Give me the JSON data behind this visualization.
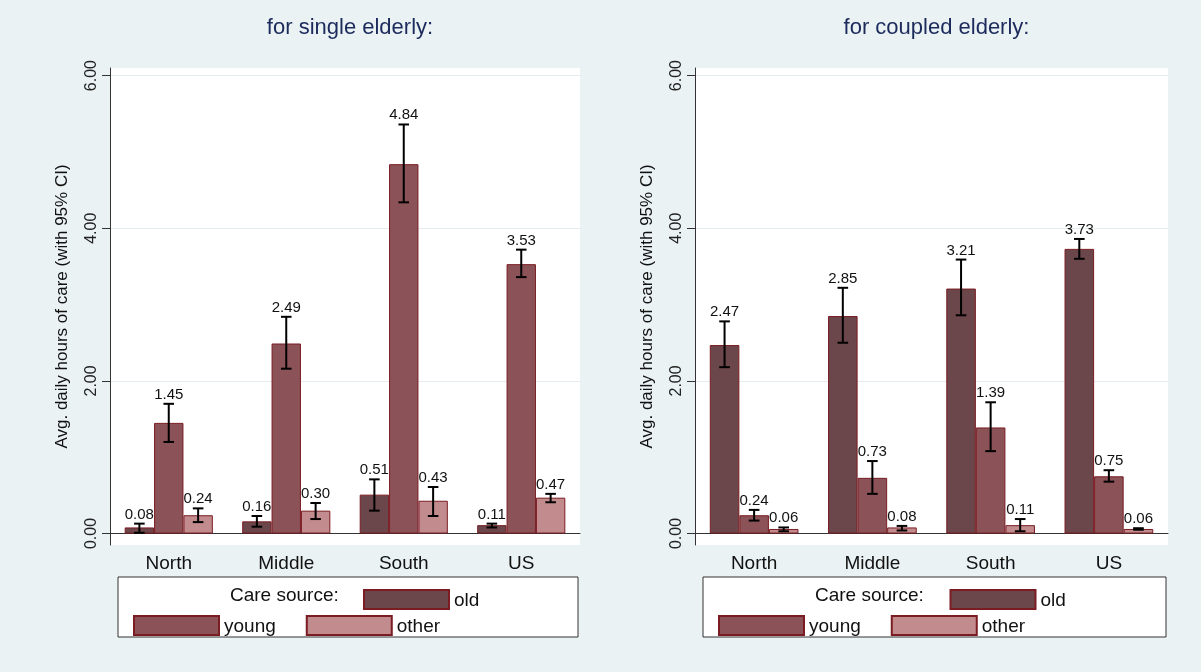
{
  "chart_data": [
    {
      "type": "bar",
      "title": "for single elderly:",
      "ylabel": "Avg. daily hours of care (with 95% CI)",
      "legend_title": "Care source:",
      "categories": [
        "North",
        "Middle",
        "South",
        "US"
      ],
      "series": [
        {
          "name": "old",
          "color": "#6b464a",
          "values": [
            0.08,
            0.16,
            0.51,
            0.11
          ],
          "value_labels": [
            "0.08",
            "0.16",
            "0.51",
            "0.11"
          ],
          "errors": [
            [
              0.01,
              0.13
            ],
            [
              0.09,
              0.23
            ],
            [
              0.3,
              0.71
            ],
            [
              0.08,
              0.13
            ]
          ]
        },
        {
          "name": "young",
          "color": "#8b5257",
          "values": [
            1.45,
            2.49,
            4.84,
            3.53
          ],
          "value_labels": [
            "1.45",
            "2.49",
            "4.84",
            "3.53"
          ],
          "errors": [
            [
              1.2,
              1.7
            ],
            [
              2.16,
              2.84
            ],
            [
              4.34,
              5.36
            ],
            [
              3.36,
              3.72
            ]
          ]
        },
        {
          "name": "other",
          "color": "#c28b8e",
          "values": [
            0.24,
            0.3,
            0.43,
            0.47
          ],
          "value_labels": [
            "0.24",
            "0.30",
            "0.43",
            "0.47"
          ],
          "errors": [
            [
              0.15,
              0.33
            ],
            [
              0.19,
              0.4
            ],
            [
              0.23,
              0.61
            ],
            [
              0.41,
              0.52
            ]
          ]
        }
      ],
      "ylim": [
        -0.15,
        6.1
      ],
      "yticks": [
        {
          "value": 0,
          "label": "0.00"
        },
        {
          "value": 2,
          "label": "2.00"
        },
        {
          "value": 4,
          "label": "4.00"
        },
        {
          "value": 6,
          "label": "6.00"
        }
      ],
      "grid": "y",
      "legend": "bottom"
    },
    {
      "type": "bar",
      "title": "for coupled elderly:",
      "ylabel": "Avg. daily hours of care (with 95% CI)",
      "legend_title": "Care source:",
      "categories": [
        "North",
        "Middle",
        "South",
        "US"
      ],
      "series": [
        {
          "name": "old",
          "color": "#6b464a",
          "values": [
            2.47,
            2.85,
            3.21,
            3.73
          ],
          "value_labels": [
            "2.47",
            "2.85",
            "3.21",
            "3.73"
          ],
          "errors": [
            [
              2.18,
              2.78
            ],
            [
              2.5,
              3.22
            ],
            [
              2.86,
              3.59
            ],
            [
              3.6,
              3.86
            ]
          ]
        },
        {
          "name": "young",
          "color": "#8b5257",
          "values": [
            0.24,
            0.73,
            1.39,
            0.75
          ],
          "value_labels": [
            "0.24",
            "0.73",
            "1.39",
            "0.75"
          ],
          "errors": [
            [
              0.17,
              0.31
            ],
            [
              0.52,
              0.95
            ],
            [
              1.08,
              1.72
            ],
            [
              0.68,
              0.83
            ]
          ]
        },
        {
          "name": "other",
          "color": "#c28b8e",
          "values": [
            0.06,
            0.08,
            0.11,
            0.06
          ],
          "value_labels": [
            "0.06",
            "0.08",
            "0.11",
            "0.06"
          ],
          "errors": [
            [
              0.03,
              0.08
            ],
            [
              0.04,
              0.1
            ],
            [
              0.03,
              0.19
            ],
            [
              0.05,
              0.07
            ]
          ]
        }
      ],
      "ylim": [
        -0.15,
        6.1
      ],
      "yticks": [
        {
          "value": 0,
          "label": "0.00"
        },
        {
          "value": 2,
          "label": "2.00"
        },
        {
          "value": 4,
          "label": "4.00"
        },
        {
          "value": 6,
          "label": "6.00"
        }
      ],
      "grid": "y",
      "legend": "bottom"
    }
  ]
}
